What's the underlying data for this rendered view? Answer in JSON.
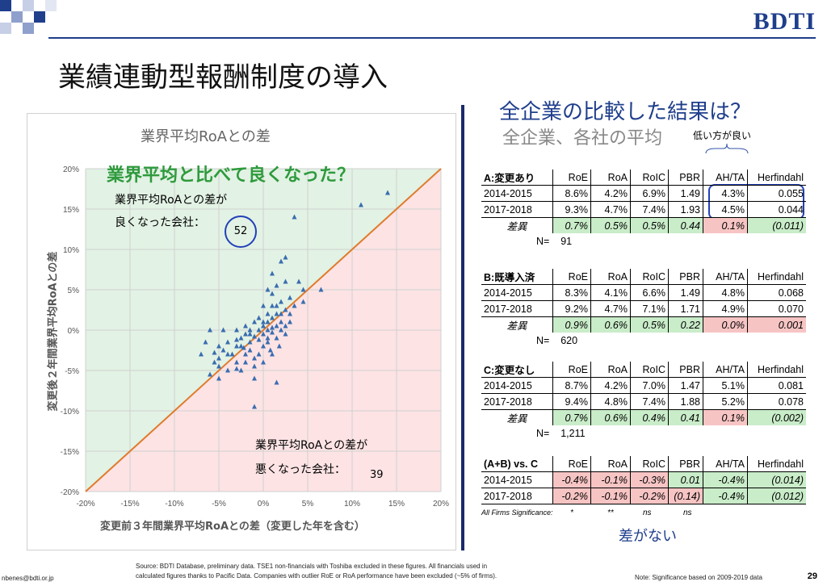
{
  "logo": "BDTI",
  "title": "業績連動型報酬制度の導入",
  "chart": {
    "title": "業界平均RoAとの差",
    "headline": "業界平均と比べて良くなった？",
    "better_label_1": "業界平均RoAとの差が",
    "better_label_2": "良くなった会社：",
    "better_count": "52",
    "worse_label_1": "業界平均RoAとの差が",
    "worse_label_2": "悪くなった会社：",
    "worse_count": "39",
    "xlabel": "変更前３年間業界平均RoAとの差（変更した年を含む）",
    "ylabel": "変更後２年間業界平均RoAとの差"
  },
  "chart_data": {
    "type": "scatter",
    "title": "業界平均RoAとの差",
    "xlabel": "変更前３年間業界平均RoAとの差（変更した年を含む）",
    "ylabel": "変更後２年間業界平均RoAとの差",
    "xlim": [
      -20,
      20
    ],
    "ylim": [
      -20,
      20
    ],
    "x_ticks": [
      "-20%",
      "-15%",
      "-10%",
      "-5%",
      "0%",
      "5%",
      "10%",
      "15%",
      "20%"
    ],
    "y_ticks": [
      "20%",
      "15%",
      "10%",
      "5%",
      "0%",
      "-5%",
      "-10%",
      "-15%",
      "-20%"
    ],
    "grid": true,
    "reference_line": "y = x",
    "colors": {
      "points": "#3a6db0",
      "line": "#e07b2c",
      "above": "#e2f2e4",
      "below": "#fde3e4"
    },
    "points": [
      [
        14,
        17
      ],
      [
        11,
        15.5
      ],
      [
        3.5,
        14
      ],
      [
        2.5,
        9
      ],
      [
        2,
        8.5
      ],
      [
        1,
        7
      ],
      [
        4,
        6
      ],
      [
        6.5,
        5
      ],
      [
        4.5,
        5
      ],
      [
        2.5,
        6
      ],
      [
        1.5,
        5.5
      ],
      [
        0.5,
        5
      ],
      [
        3,
        4
      ],
      [
        1,
        4.5
      ],
      [
        2,
        3.5
      ],
      [
        4.5,
        3.5
      ],
      [
        3.5,
        3
      ],
      [
        0,
        3
      ],
      [
        1,
        3
      ],
      [
        2.5,
        2.5
      ],
      [
        1.5,
        2
      ],
      [
        0.5,
        2
      ],
      [
        -0.5,
        1.5
      ],
      [
        1,
        1.5
      ],
      [
        2,
        1
      ],
      [
        3,
        1
      ],
      [
        0.5,
        1
      ],
      [
        -1,
        1
      ],
      [
        0,
        0.5
      ],
      [
        1.5,
        0.5
      ],
      [
        -0.5,
        0
      ],
      [
        -1.5,
        0
      ],
      [
        0.5,
        0
      ],
      [
        1,
        -0.3
      ],
      [
        2,
        0
      ],
      [
        2.5,
        0.5
      ],
      [
        -2,
        -0.5
      ],
      [
        -1,
        -0.8
      ],
      [
        0,
        -0.5
      ],
      [
        -3,
        0
      ],
      [
        -2.5,
        -1
      ],
      [
        -1.5,
        -1.5
      ],
      [
        0.5,
        -1.5
      ],
      [
        1.5,
        -1
      ],
      [
        2.5,
        -0.5
      ],
      [
        -3,
        -2
      ],
      [
        -4,
        -3
      ],
      [
        -2,
        -3
      ],
      [
        -5,
        -3.5
      ],
      [
        -5,
        -4.5
      ],
      [
        -5,
        -6
      ],
      [
        -3,
        -4
      ],
      [
        -2.5,
        -5
      ],
      [
        -1.5,
        -2.5
      ],
      [
        -1,
        -3.5
      ],
      [
        0,
        -2
      ],
      [
        -5,
        -2
      ],
      [
        -6.5,
        -1.5
      ],
      [
        -7,
        -3
      ],
      [
        -5.5,
        -4
      ],
      [
        -4,
        -5
      ],
      [
        -3,
        -4.8
      ],
      [
        -2,
        -4
      ],
      [
        -1,
        -4.5
      ],
      [
        -0.5,
        -3
      ],
      [
        1,
        -3
      ],
      [
        0,
        -4
      ],
      [
        -4.5,
        -2.5
      ],
      [
        -3.5,
        -3
      ],
      [
        -6,
        -5.5
      ],
      [
        -5.5,
        -2.8
      ],
      [
        -4,
        -1.5
      ],
      [
        -1,
        -6
      ],
      [
        1.5,
        -6.5
      ],
      [
        -1,
        -9.5
      ],
      [
        -2.5,
        -2
      ],
      [
        0.5,
        -1
      ],
      [
        -1.5,
        -0.5
      ],
      [
        -0.5,
        -1.2
      ],
      [
        1,
        0.3
      ],
      [
        2,
        2
      ],
      [
        3,
        2
      ],
      [
        1.5,
        3
      ],
      [
        0,
        1
      ],
      [
        -2,
        0.5
      ],
      [
        -4.5,
        0
      ],
      [
        -6,
        0
      ],
      [
        -3,
        -1.2
      ],
      [
        -2.2,
        -2.2
      ],
      [
        0.8,
        -2.5
      ],
      [
        1.8,
        -2
      ]
    ]
  },
  "right": {
    "heading": "全企業の比較した結果は？",
    "subheading": "全企業、各社の平均",
    "lower_better": "低い方が良い",
    "columns": [
      "RoE",
      "RoA",
      "RoIC",
      "PBR",
      "AH/TA",
      "Herfindahl"
    ],
    "sections": [
      {
        "name": "A:変更あり",
        "rows": [
          {
            "label": "2014-2015",
            "cells": [
              "8.6%",
              "4.2%",
              "6.9%",
              "1.49",
              "4.3%",
              "0.055"
            ]
          },
          {
            "label": "2017-2018",
            "cells": [
              "9.3%",
              "4.7%",
              "7.4%",
              "1.93",
              "4.5%",
              "0.044"
            ]
          }
        ],
        "diff_label": "差異",
        "diff": [
          "0.7%",
          "0.5%",
          "0.5%",
          "0.44",
          "0.1%",
          "(0.011)"
        ],
        "diff_colors": [
          "g",
          "g",
          "g",
          "g",
          "r",
          "g"
        ],
        "n_label": "N=",
        "n": "91"
      },
      {
        "name": "B:既導入済",
        "rows": [
          {
            "label": "2014-2015",
            "cells": [
              "8.3%",
              "4.1%",
              "6.6%",
              "1.49",
              "4.8%",
              "0.068"
            ]
          },
          {
            "label": "2017-2018",
            "cells": [
              "9.2%",
              "4.7%",
              "7.1%",
              "1.71",
              "4.9%",
              "0.070"
            ]
          }
        ],
        "diff_label": "差異",
        "diff": [
          "0.9%",
          "0.6%",
          "0.5%",
          "0.22",
          "0.0%",
          "0.001"
        ],
        "diff_colors": [
          "g",
          "g",
          "g",
          "g",
          "r",
          "r"
        ],
        "n_label": "N=",
        "n": "620"
      },
      {
        "name": "C:変更なし",
        "rows": [
          {
            "label": "2014-2015",
            "cells": [
              "8.7%",
              "4.2%",
              "7.0%",
              "1.47",
              "5.1%",
              "0.081"
            ]
          },
          {
            "label": "2017-2018",
            "cells": [
              "9.4%",
              "4.8%",
              "7.4%",
              "1.88",
              "5.2%",
              "0.078"
            ]
          }
        ],
        "diff_label": "差異",
        "diff": [
          "0.7%",
          "0.6%",
          "0.4%",
          "0.41",
          "0.1%",
          "(0.002)"
        ],
        "diff_colors": [
          "g",
          "g",
          "g",
          "g",
          "r",
          "g"
        ],
        "n_label": "N=",
        "n": "1,211"
      },
      {
        "name": "(A+B) vs. C",
        "rows": [
          {
            "label": "2014-2015",
            "cells": [
              "-0.4%",
              "-0.1%",
              "-0.3%",
              "0.01",
              "-0.4%",
              "(0.014)"
            ],
            "colors": [
              "r",
              "r",
              "r",
              "g",
              "g",
              "g"
            ]
          },
          {
            "label": "2017-2018",
            "cells": [
              "-0.2%",
              "-0.1%",
              "-0.2%",
              "(0.14)",
              "-0.4%",
              "(0.012)"
            ],
            "colors": [
              "r",
              "r",
              "r",
              "r",
              "g",
              "g"
            ]
          }
        ]
      }
    ],
    "sig_label": "All Firms Significance:",
    "sig_values": [
      "*",
      "**",
      "ns",
      "ns"
    ],
    "no_diff": "差がない"
  },
  "footer": {
    "email": "nbenes@bdti.or.jp",
    "source_1": "Source: BDTI Database,  preliminary  data. TSE1 non-financials with  Toshiba excluded in these figures. All financials  used in",
    "source_2": "calculated figures thanks to Pacific Data. Companies with outlier  RoE or RoA performance  have been excluded  (~5% of firms).",
    "note": "Note: Significance  based on 2009-2019  data",
    "page": "29"
  }
}
